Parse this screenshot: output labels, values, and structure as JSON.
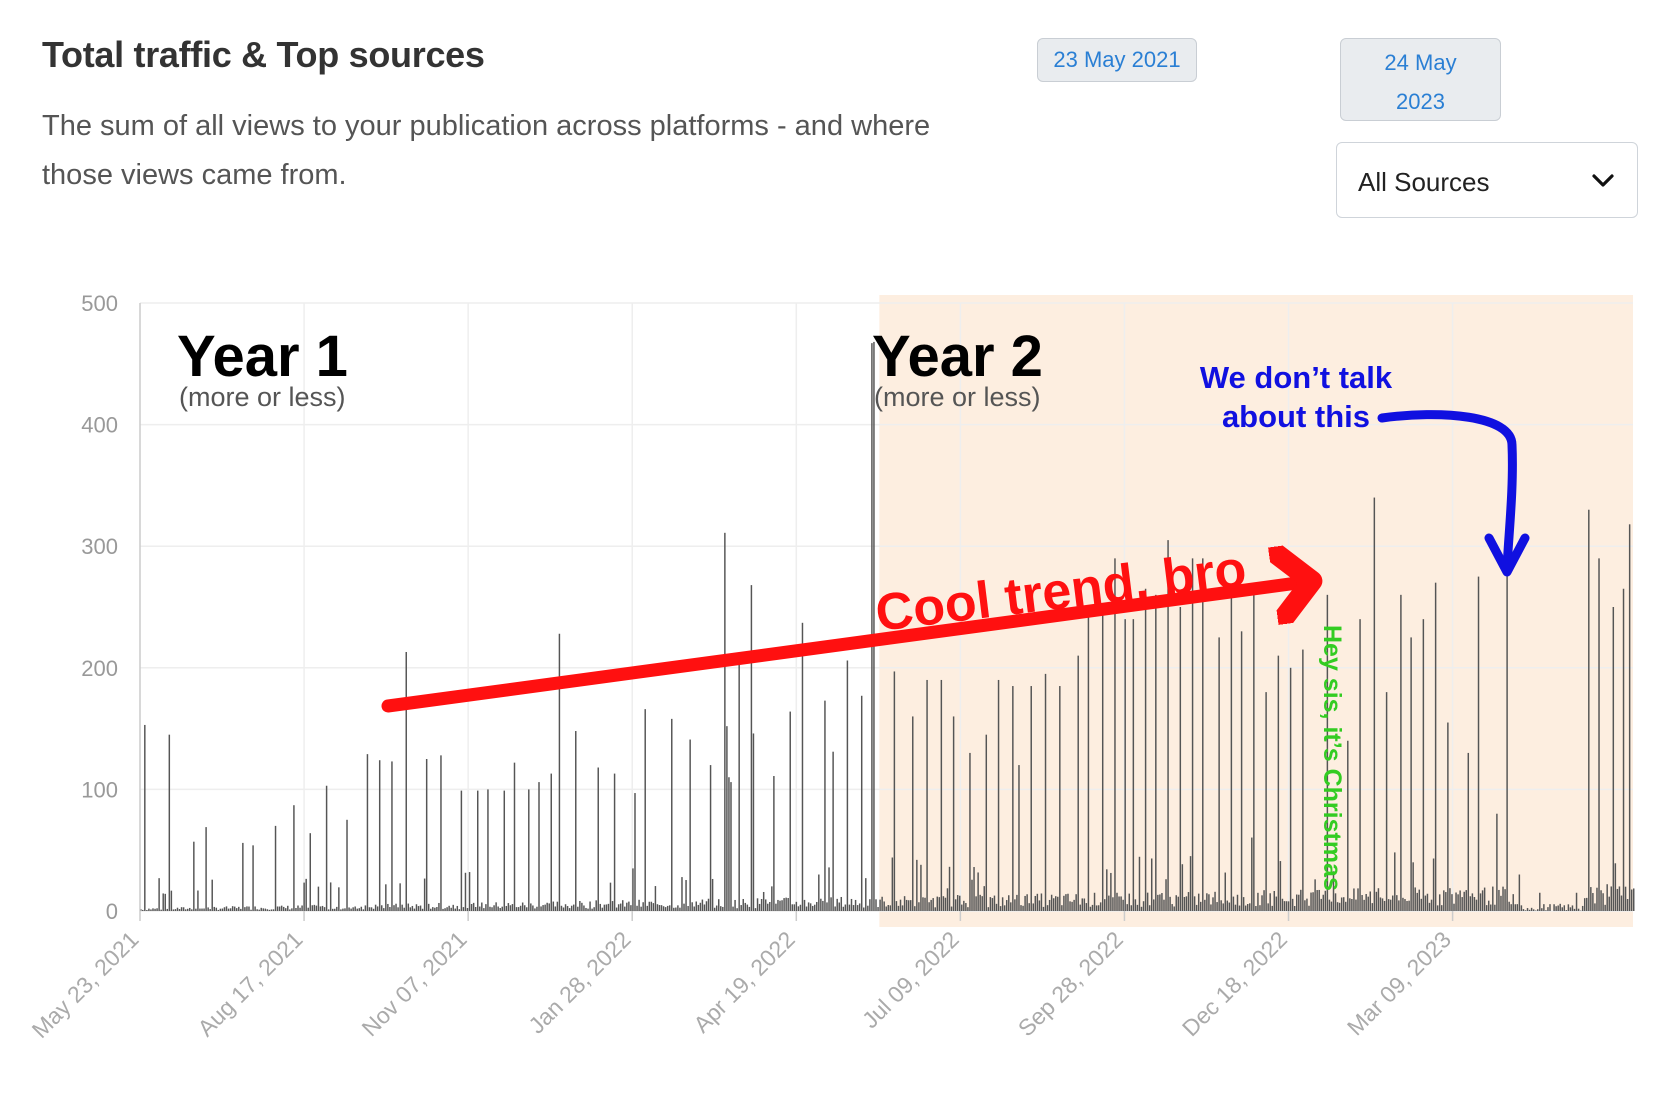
{
  "header": {
    "title": "Total traffic & Top sources",
    "subtitle": "The sum of all views to your publication across platforms - and where those views came from."
  },
  "date_range": {
    "start": "23 May 2021",
    "end_line1": "24 May",
    "end_line2": "2023"
  },
  "source_filter": {
    "selected": "All Sources"
  },
  "colors": {
    "bars": "#555555",
    "year2_band": "#fdeee0",
    "grid": "#eeeeee",
    "arrow_red": "#ff1010",
    "note_blue": "#1010e0",
    "note_green": "#33cc22"
  },
  "chart_data": {
    "type": "bar",
    "x_start": "2021-05-23",
    "x_end": "2023-05-24",
    "ylim": [
      0,
      500
    ],
    "yticks": [
      0,
      100,
      200,
      300,
      400,
      500
    ],
    "xtick_labels": [
      "May 23, 2021",
      "Aug 17, 2021",
      "Nov 07, 2021",
      "Jan 28, 2022",
      "Apr 19, 2022",
      "Jul 09, 2022",
      "Sep 28, 2022",
      "Dec 18, 2022",
      "Mar 09, 2023"
    ],
    "grid": true,
    "background_seed": 7,
    "series": [
      {
        "values_peaks": [
          [
            "2021-05-25",
            153
          ],
          [
            "2021-06-01",
            27
          ],
          [
            "2021-06-06",
            145
          ],
          [
            "2021-06-18",
            57
          ],
          [
            "2021-06-24",
            69
          ],
          [
            "2021-07-12",
            56
          ],
          [
            "2021-07-17",
            54
          ],
          [
            "2021-07-28",
            70
          ],
          [
            "2021-08-06",
            87
          ],
          [
            "2021-08-14",
            64
          ],
          [
            "2021-08-22",
            103
          ],
          [
            "2021-09-01",
            75
          ],
          [
            "2021-09-11",
            129
          ],
          [
            "2021-09-17",
            124
          ],
          [
            "2021-09-23",
            123
          ],
          [
            "2021-09-30",
            213
          ],
          [
            "2021-10-10",
            125
          ],
          [
            "2021-10-17",
            128
          ],
          [
            "2021-10-27",
            99
          ],
          [
            "2021-11-04",
            99
          ],
          [
            "2021-11-09",
            100
          ],
          [
            "2021-11-17",
            99
          ],
          [
            "2021-11-22",
            122
          ],
          [
            "2021-11-29",
            100
          ],
          [
            "2021-12-04",
            106
          ],
          [
            "2021-12-10",
            113
          ],
          [
            "2021-12-14",
            228
          ],
          [
            "2021-12-22",
            148
          ],
          [
            "2022-01-02",
            118
          ],
          [
            "2022-01-10",
            113
          ],
          [
            "2022-01-20",
            97
          ],
          [
            "2022-01-25",
            166
          ],
          [
            "2022-02-07",
            158
          ],
          [
            "2022-02-16",
            141
          ],
          [
            "2022-02-26",
            120
          ],
          [
            "2022-03-05",
            311
          ],
          [
            "2022-03-06",
            152
          ],
          [
            "2022-03-07",
            110
          ],
          [
            "2022-03-08",
            106
          ],
          [
            "2022-03-12",
            209
          ],
          [
            "2022-03-18",
            268
          ],
          [
            "2022-03-19",
            146
          ],
          [
            "2022-03-29",
            111
          ],
          [
            "2022-04-06",
            164
          ],
          [
            "2022-04-12",
            237
          ],
          [
            "2022-04-23",
            173
          ],
          [
            "2022-04-27",
            131
          ],
          [
            "2022-05-04",
            206
          ],
          [
            "2022-05-11",
            177
          ],
          [
            "2022-05-16",
            467
          ],
          [
            "2022-05-17",
            468
          ],
          [
            "2022-05-27",
            197
          ],
          [
            "2022-06-05",
            160
          ],
          [
            "2022-06-12",
            190
          ],
          [
            "2022-06-19",
            190
          ],
          [
            "2022-06-25",
            160
          ],
          [
            "2022-07-03",
            130
          ],
          [
            "2022-07-11",
            145
          ],
          [
            "2022-07-17",
            190
          ],
          [
            "2022-07-24",
            185
          ],
          [
            "2022-07-27",
            120
          ],
          [
            "2022-08-02",
            185
          ],
          [
            "2022-08-09",
            195
          ],
          [
            "2022-08-16",
            185
          ],
          [
            "2022-08-25",
            210
          ],
          [
            "2022-08-30",
            245
          ],
          [
            "2022-09-06",
            250
          ],
          [
            "2022-09-12",
            290
          ],
          [
            "2022-09-17",
            240
          ],
          [
            "2022-09-21",
            240
          ],
          [
            "2022-09-27",
            265
          ],
          [
            "2022-10-02",
            260
          ],
          [
            "2022-10-08",
            305
          ],
          [
            "2022-10-14",
            250
          ],
          [
            "2022-10-20",
            290
          ],
          [
            "2022-10-25",
            290
          ],
          [
            "2022-11-02",
            225
          ],
          [
            "2022-11-08",
            260
          ],
          [
            "2022-11-13",
            230
          ],
          [
            "2022-11-19",
            270
          ],
          [
            "2022-11-25",
            180
          ],
          [
            "2022-12-01",
            210
          ],
          [
            "2022-12-07",
            200
          ],
          [
            "2022-12-13",
            215
          ],
          [
            "2022-12-25",
            260
          ],
          [
            "2023-01-04",
            140
          ],
          [
            "2023-01-10",
            240
          ],
          [
            "2023-01-17",
            340
          ],
          [
            "2023-01-23",
            180
          ],
          [
            "2023-01-30",
            260
          ],
          [
            "2023-02-04",
            225
          ],
          [
            "2023-02-10",
            240
          ],
          [
            "2023-02-16",
            270
          ],
          [
            "2023-02-22",
            155
          ],
          [
            "2023-03-04",
            130
          ],
          [
            "2023-03-09",
            275
          ],
          [
            "2023-03-18",
            80
          ],
          [
            "2023-03-23",
            305
          ],
          [
            "2023-03-29",
            30
          ],
          [
            "2023-04-08",
            15
          ],
          [
            "2023-04-26",
            15
          ],
          [
            "2023-05-02",
            330
          ],
          [
            "2023-05-07",
            290
          ],
          [
            "2023-05-14",
            250
          ],
          [
            "2023-05-19",
            265
          ],
          [
            "2023-05-22",
            318
          ]
        ]
      }
    ],
    "annotations": {
      "year1": "Year 1",
      "year1_note": "(more or less)",
      "year2": "Year 2",
      "year2_note": "(more or less)",
      "year2_band_start": "2022-05-20",
      "year2_band_end": "2023-05-24",
      "trend": "Cool trend, bro",
      "blue_line1": "We don’t talk",
      "blue_line2": "about this",
      "green": "Hey sis, it’s Christmas"
    }
  }
}
